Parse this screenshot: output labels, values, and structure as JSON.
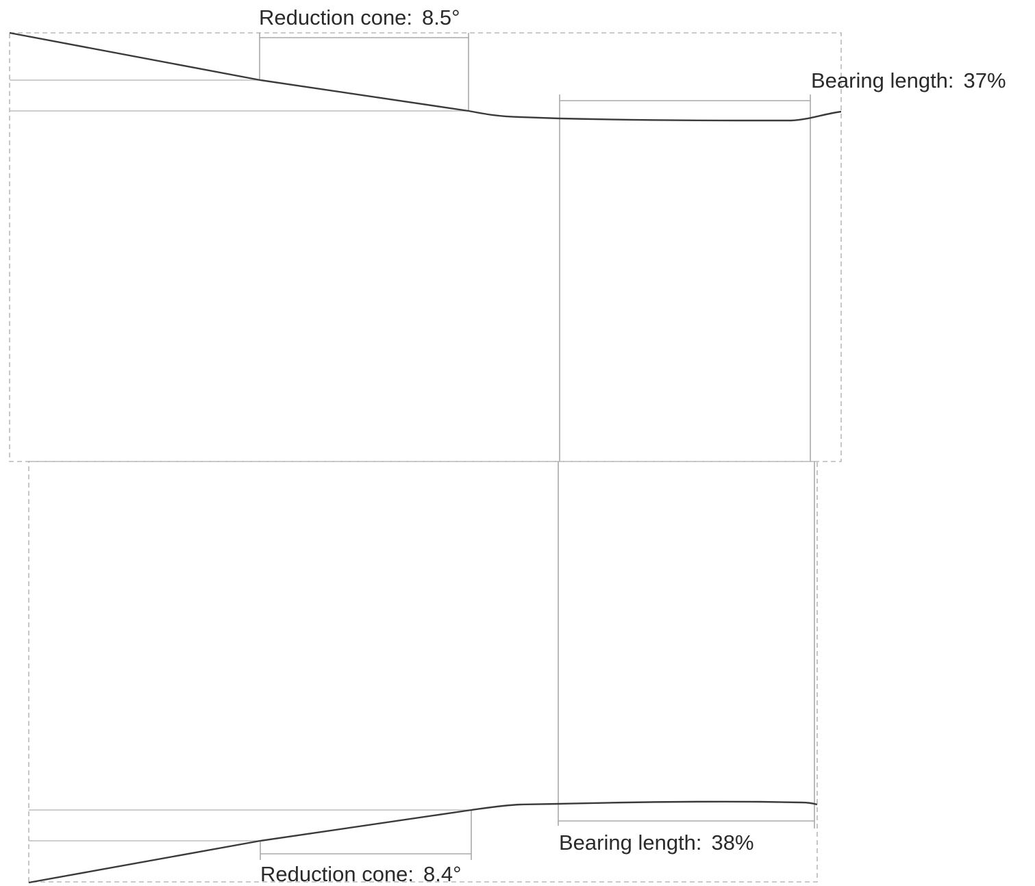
{
  "upper_profile": {
    "reduction_cone_label": "Reduction cone:",
    "reduction_cone_value": "8.5°",
    "bearing_length_label": "Bearing length:",
    "bearing_length_value": "37%"
  },
  "lower_profile": {
    "reduction_cone_label": "Reduction cone:",
    "reduction_cone_value": "8.4°",
    "bearing_length_label": "Bearing length:",
    "bearing_length_value": "38%"
  }
}
